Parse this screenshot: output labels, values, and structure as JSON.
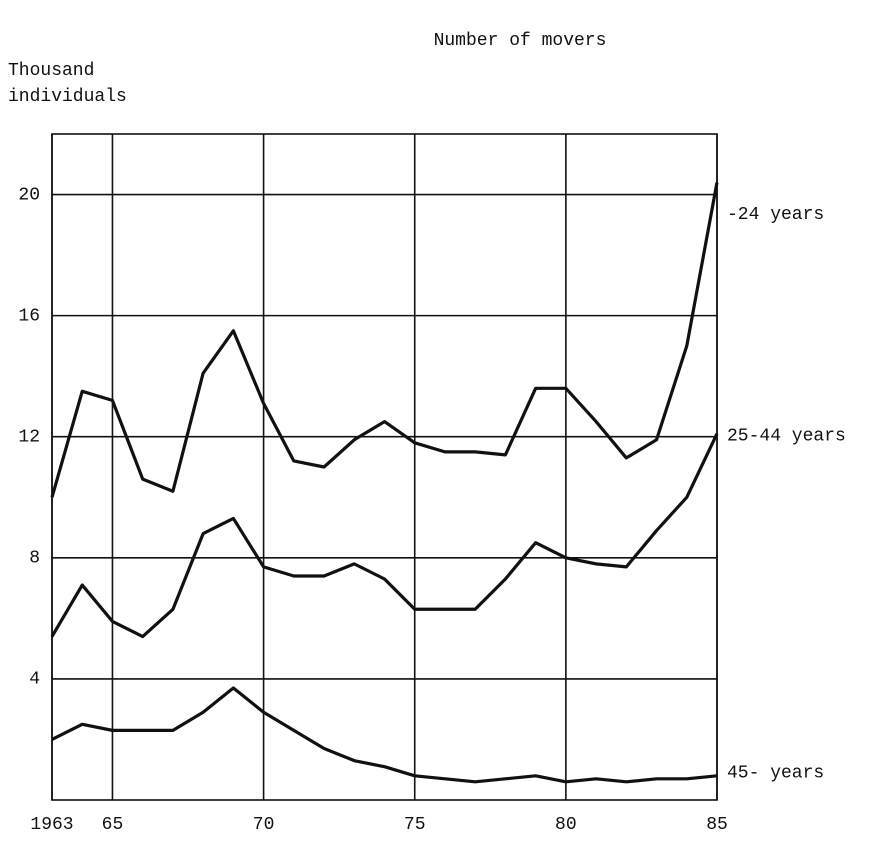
{
  "chart_data": {
    "type": "line",
    "title": "Number of movers",
    "ylabel": [
      "Thousand",
      "individuals"
    ],
    "x": [
      1963,
      1964,
      1965,
      1966,
      1967,
      1968,
      1969,
      1970,
      1971,
      1972,
      1973,
      1974,
      1975,
      1976,
      1977,
      1978,
      1979,
      1980,
      1981,
      1982,
      1983,
      1984,
      1985
    ],
    "series": [
      {
        "name": "-24 years",
        "color": "#111111",
        "values": [
          10.0,
          13.5,
          13.2,
          10.6,
          10.2,
          14.1,
          15.5,
          13.1,
          11.2,
          11.0,
          11.9,
          12.5,
          11.8,
          11.5,
          11.5,
          11.4,
          13.6,
          13.6,
          12.5,
          11.3,
          11.9,
          15.0,
          20.4
        ]
      },
      {
        "name": "25-44 years",
        "color": "#111111",
        "values": [
          5.4,
          7.1,
          5.9,
          5.4,
          6.3,
          8.8,
          9.3,
          7.7,
          7.4,
          7.4,
          7.8,
          7.3,
          6.3,
          6.3,
          6.3,
          7.3,
          8.5,
          8.0,
          7.8,
          7.7,
          8.9,
          10.0,
          12.1
        ]
      },
      {
        "name": "45- years",
        "color": "#111111",
        "values": [
          2.0,
          2.5,
          2.3,
          2.3,
          2.3,
          2.9,
          3.7,
          2.9,
          2.3,
          1.7,
          1.3,
          1.1,
          0.8,
          0.7,
          0.6,
          0.7,
          0.8,
          0.6,
          0.7,
          0.6,
          0.7,
          0.7,
          0.8
        ]
      }
    ],
    "xlim": [
      1963,
      1985
    ],
    "xticks": [
      {
        "value": 1963,
        "label": "1963"
      },
      {
        "value": 1965,
        "label": "65"
      },
      {
        "value": 1970,
        "label": "70"
      },
      {
        "value": 1975,
        "label": "75"
      },
      {
        "value": 1980,
        "label": "80"
      },
      {
        "value": 1985,
        "label": "85"
      }
    ],
    "ylim": [
      0,
      22
    ],
    "yticks": [
      4,
      8,
      12,
      16,
      20
    ],
    "grid": true
  }
}
